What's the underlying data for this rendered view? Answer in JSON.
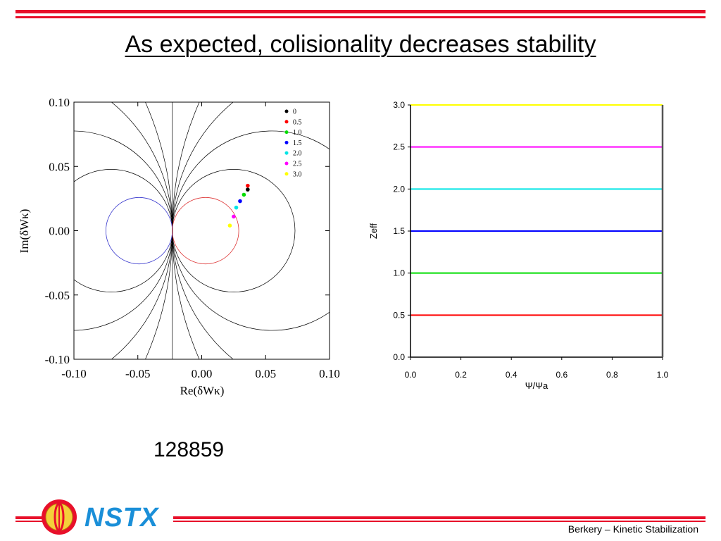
{
  "slide": {
    "title": "As expected, colisionality decreases stability",
    "shot_number": "128859",
    "footer": "Berkery – Kinetic Stabilization",
    "logo_text": "NSTX",
    "accent_color": "#e8102a",
    "logo_color": "#1a8fd8"
  },
  "chart_data": [
    {
      "type": "scatter",
      "xlabel": "Re(δWκ)",
      "ylabel": "Im(δWκ)",
      "xlim": [
        -0.1,
        0.1
      ],
      "ylim": [
        -0.1,
        0.1
      ],
      "x_ticks": [
        "-0.10",
        "-0.05",
        "0.00",
        "0.05",
        "0.10"
      ],
      "y_ticks": [
        "0.10",
        "0.05",
        "0.00",
        "-0.05",
        "-0.10"
      ],
      "legend_position": "top-right",
      "legend": [
        "0",
        "0.5",
        "1.0",
        "1.5",
        "2.0",
        "2.5",
        "3.0"
      ],
      "points": [
        {
          "label": "0",
          "x": 0.036,
          "y": 0.032,
          "color": "#000000"
        },
        {
          "label": "0.5",
          "x": 0.036,
          "y": 0.035,
          "color": "#ff0000"
        },
        {
          "label": "1.0",
          "x": 0.033,
          "y": 0.028,
          "color": "#00dd00"
        },
        {
          "label": "1.5",
          "x": 0.03,
          "y": 0.023,
          "color": "#0000ff"
        },
        {
          "label": "2.0",
          "x": 0.027,
          "y": 0.018,
          "color": "#00e5e5"
        },
        {
          "label": "2.5",
          "x": 0.025,
          "y": 0.011,
          "color": "#ff00ff"
        },
        {
          "label": "3.0",
          "x": 0.022,
          "y": 0.004,
          "color": "#ffff00"
        }
      ],
      "contours": {
        "vertical_line_x": -0.023,
        "reference_circles": [
          {
            "cx": -0.049,
            "r": 0.026,
            "color": "#3333cc"
          },
          {
            "cx": 0.003,
            "r": 0.026,
            "color": "#dd3333"
          }
        ],
        "black_circle_pairs_radius": [
          0.048,
          0.078,
          0.13,
          0.25
        ]
      }
    },
    {
      "type": "line",
      "xlabel": "Ψ/Ψa",
      "ylabel": "Zeff",
      "xlim": [
        0.0,
        1.0
      ],
      "ylim": [
        0.0,
        3.0
      ],
      "x_ticks": [
        "0.0",
        "0.2",
        "0.4",
        "0.6",
        "0.8",
        "1.0"
      ],
      "y_ticks": [
        "0.0",
        "0.5",
        "1.0",
        "1.5",
        "2.0",
        "2.5",
        "3.0"
      ],
      "series": [
        {
          "x": [
            0.0,
            1.0
          ],
          "y": [
            0.5,
            0.5
          ],
          "color": "#ff0000"
        },
        {
          "x": [
            0.0,
            1.0
          ],
          "y": [
            1.0,
            1.0
          ],
          "color": "#00dd00"
        },
        {
          "x": [
            0.0,
            1.0
          ],
          "y": [
            1.5,
            1.5
          ],
          "color": "#0000ff"
        },
        {
          "x": [
            0.0,
            1.0
          ],
          "y": [
            2.0,
            2.0
          ],
          "color": "#00e5e5"
        },
        {
          "x": [
            0.0,
            1.0
          ],
          "y": [
            2.5,
            2.5
          ],
          "color": "#ff00ff"
        },
        {
          "x": [
            0.0,
            1.0
          ],
          "y": [
            3.0,
            3.0
          ],
          "color": "#ffff00"
        }
      ]
    }
  ]
}
